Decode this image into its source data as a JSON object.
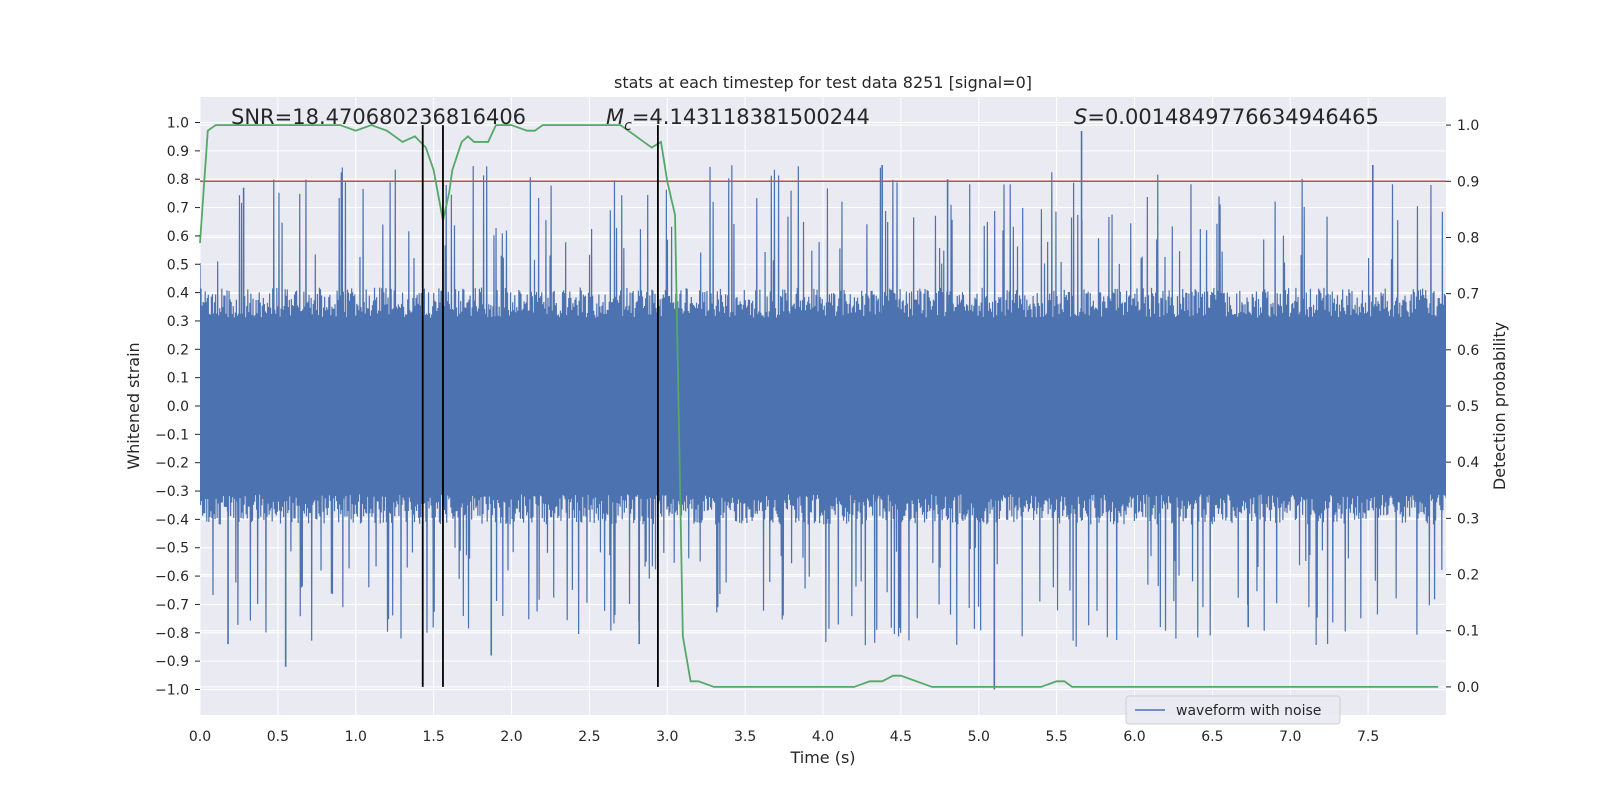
{
  "chart_data": {
    "type": "line",
    "title": "stats at each timestep for test data 8251 [signal=0]",
    "xlabel": "Time (s)",
    "ylabel_left": "Whitened strain",
    "ylabel_right": "Detection probability",
    "xlim": [
      0.0,
      8.0
    ],
    "ylim_left": [
      -1.09,
      1.09
    ],
    "ylim_right": [
      -0.05,
      1.05
    ],
    "x_ticks": [
      0.0,
      0.5,
      1.0,
      1.5,
      2.0,
      2.5,
      3.0,
      3.5,
      4.0,
      4.5,
      5.0,
      5.5,
      6.0,
      6.5,
      7.0,
      7.5
    ],
    "x_tick_labels": [
      "0.0",
      "0.5",
      "1.0",
      "1.5",
      "2.0",
      "2.5",
      "3.0",
      "3.5",
      "4.0",
      "4.5",
      "5.0",
      "5.5",
      "6.0",
      "6.5",
      "7.0",
      "7.5"
    ],
    "y_left_ticks": [
      1.0,
      0.9,
      0.8,
      0.7,
      0.6,
      0.5,
      0.4,
      0.3,
      0.2,
      0.1,
      0.0,
      -0.1,
      -0.2,
      -0.3,
      -0.4,
      -0.5,
      -0.6,
      -0.7,
      -0.8,
      -0.9,
      -1.0
    ],
    "y_left_tick_labels": [
      "1.0",
      "0.9",
      "0.8",
      "0.7",
      "0.6",
      "0.5",
      "0.4",
      "0.3",
      "0.2",
      "0.1",
      "0.0",
      "-0.1",
      "-0.2",
      "-0.3",
      "-0.4",
      "-0.5",
      "-0.6",
      "-0.7",
      "-0.8",
      "-0.9",
      "-1.0"
    ],
    "y_right_ticks": [
      1.0,
      0.9,
      0.8,
      0.7,
      0.6,
      0.5,
      0.4,
      0.3,
      0.2,
      0.1,
      0.0
    ],
    "y_right_tick_labels": [
      "1.0",
      "0.9",
      "0.8",
      "0.7",
      "0.6",
      "0.5",
      "0.4",
      "0.3",
      "0.2",
      "0.1",
      "0.0"
    ],
    "annotations": {
      "snr": "SNR=18.470680236816406",
      "mc_symbol": "M",
      "mc_sub": "c",
      "mc_value": "=4.143118381500244",
      "s_symbol": "S",
      "s_value": "=0.0014849776634946465"
    },
    "threshold_right": 0.9,
    "vertical_lines_x": [
      1.43,
      1.56,
      2.94
    ],
    "series": [
      {
        "name": "waveform with noise",
        "axis": "left",
        "color": "#4c72b0",
        "envelope_typical": 0.38,
        "peak_spikes": [
          {
            "x": 0.28,
            "y": 0.77
          },
          {
            "x": 0.55,
            "y": -0.92
          },
          {
            "x": 0.18,
            "y": -0.84
          },
          {
            "x": 1.43,
            "y": -0.72
          },
          {
            "x": 1.87,
            "y": -0.88
          },
          {
            "x": 2.82,
            "y": -0.84
          },
          {
            "x": 4.38,
            "y": 0.85
          },
          {
            "x": 4.8,
            "y": 0.8
          },
          {
            "x": 5.1,
            "y": -1.0
          },
          {
            "x": 5.66,
            "y": 0.97
          },
          {
            "x": 7.53,
            "y": 0.85
          },
          {
            "x": 6.73,
            "y": -0.78
          }
        ]
      },
      {
        "name": "detection probability",
        "axis": "right",
        "color": "#55a868",
        "x": [
          0.0,
          0.05,
          0.1,
          0.2,
          0.3,
          0.4,
          0.5,
          0.6,
          0.7,
          0.8,
          0.9,
          1.0,
          1.1,
          1.2,
          1.25,
          1.3,
          1.38,
          1.45,
          1.5,
          1.56,
          1.6,
          1.62,
          1.68,
          1.72,
          1.76,
          1.8,
          1.85,
          1.9,
          2.0,
          2.1,
          2.15,
          2.2,
          2.3,
          2.4,
          2.5,
          2.6,
          2.7,
          2.8,
          2.9,
          2.96,
          3.0,
          3.05,
          3.1,
          3.15,
          3.2,
          3.3,
          3.4,
          3.6,
          3.8,
          4.0,
          4.1,
          4.2,
          4.3,
          4.38,
          4.45,
          4.5,
          4.6,
          4.7,
          4.8,
          5.0,
          5.2,
          5.4,
          5.5,
          5.55,
          5.6,
          5.7,
          5.8,
          6.0,
          6.5,
          6.9,
          7.0,
          7.5,
          7.95
        ],
        "y": [
          0.79,
          0.99,
          1.0,
          1.0,
          1.0,
          1.0,
          1.0,
          1.0,
          1.0,
          1.0,
          1.0,
          0.99,
          1.0,
          0.99,
          0.98,
          0.97,
          0.98,
          0.96,
          0.92,
          0.83,
          0.88,
          0.92,
          0.97,
          0.98,
          0.97,
          0.97,
          0.97,
          1.0,
          1.0,
          0.99,
          0.99,
          1.0,
          1.0,
          1.0,
          1.0,
          1.0,
          1.0,
          0.98,
          0.96,
          0.97,
          0.9,
          0.84,
          0.09,
          0.01,
          0.01,
          0.0,
          0.0,
          0.0,
          0.0,
          0.0,
          0.0,
          0.0,
          0.01,
          0.01,
          0.02,
          0.02,
          0.01,
          0.0,
          0.0,
          0.0,
          0.0,
          0.0,
          0.01,
          0.01,
          0.0,
          0.0,
          0.0,
          0.0,
          0.0,
          0.0,
          0.0,
          0.0,
          0.0
        ]
      }
    ],
    "legend": {
      "entries": [
        "waveform with noise"
      ],
      "location": "lower right"
    },
    "grid": true
  }
}
